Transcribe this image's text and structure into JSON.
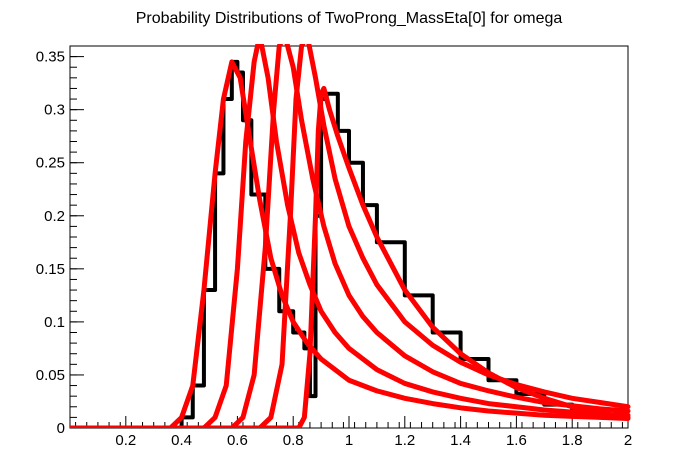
{
  "chart_data": {
    "type": "line",
    "title": "Probability Distributions of TwoProng_MassEta[0] for omega",
    "xlabel": "",
    "ylabel": "",
    "xlim": [
      0,
      2
    ],
    "ylim": [
      0,
      0.36
    ],
    "x_ticks": [
      0.2,
      0.4,
      0.6,
      0.8,
      1,
      1.2,
      1.4,
      1.6,
      1.8,
      2
    ],
    "x_tick_labels": [
      "0.2",
      "0.4",
      "0.6",
      "0.8",
      "1",
      "1.2",
      "1.4",
      "1.6",
      "1.8",
      "2"
    ],
    "y_ticks": [
      0,
      0.05,
      0.1,
      0.15,
      0.2,
      0.25,
      0.3,
      0.35
    ],
    "y_tick_labels": [
      "0",
      "0.05",
      "0.1",
      "0.15",
      "0.2",
      "0.25",
      "0.3",
      "0.35"
    ],
    "grid": false,
    "legend": "none",
    "colors": {
      "histogram": "#000000",
      "curves": "#ff0000"
    },
    "series": [
      {
        "style": "step",
        "color": "#000000",
        "x": [
          0.36,
          0.4,
          0.44,
          0.48,
          0.52,
          0.55,
          0.58,
          0.6,
          0.62,
          0.65,
          0.7,
          0.75,
          0.8,
          0.84,
          0.86,
          0.88,
          0.9,
          0.92,
          0.96,
          1.0,
          1.05,
          1.1,
          1.2,
          1.3,
          1.4,
          1.5,
          1.6,
          1.7,
          1.8,
          1.9,
          2.0
        ],
        "y": [
          0.0,
          0.01,
          0.04,
          0.13,
          0.24,
          0.31,
          0.345,
          0.335,
          0.29,
          0.22,
          0.15,
          0.11,
          0.09,
          0.075,
          0.03,
          0.2,
          0.31,
          0.315,
          0.28,
          0.25,
          0.21,
          0.175,
          0.125,
          0.09,
          0.065,
          0.045,
          0.032,
          0.022,
          0.016,
          0.012,
          0.01
        ]
      },
      {
        "style": "curve",
        "color": "#ff0000",
        "x": [
          0.36,
          0.4,
          0.44,
          0.48,
          0.52,
          0.55,
          0.58,
          0.61,
          0.64,
          0.68,
          0.72,
          0.76,
          0.8,
          0.85,
          0.9,
          1.0,
          1.1,
          1.2,
          1.3,
          1.4,
          1.5,
          1.6,
          1.7,
          1.8,
          1.9,
          2.0
        ],
        "y": [
          0.0,
          0.01,
          0.04,
          0.13,
          0.24,
          0.31,
          0.345,
          0.33,
          0.28,
          0.215,
          0.16,
          0.125,
          0.1,
          0.08,
          0.065,
          0.045,
          0.035,
          0.028,
          0.023,
          0.019,
          0.016,
          0.014,
          0.012,
          0.011,
          0.01,
          0.009
        ]
      },
      {
        "style": "curve",
        "color": "#ff0000",
        "x": [
          0.48,
          0.52,
          0.56,
          0.6,
          0.63,
          0.66,
          0.68,
          0.71,
          0.74,
          0.78,
          0.82,
          0.86,
          0.9,
          0.95,
          1.0,
          1.1,
          1.2,
          1.3,
          1.4,
          1.5,
          1.6,
          1.7,
          1.8,
          1.9,
          2.0
        ],
        "y": [
          0.0,
          0.01,
          0.04,
          0.15,
          0.27,
          0.345,
          0.37,
          0.33,
          0.27,
          0.21,
          0.165,
          0.135,
          0.11,
          0.09,
          0.075,
          0.055,
          0.042,
          0.034,
          0.028,
          0.023,
          0.02,
          0.017,
          0.015,
          0.013,
          0.012
        ]
      },
      {
        "style": "curve",
        "color": "#ff0000",
        "x": [
          0.58,
          0.62,
          0.66,
          0.7,
          0.73,
          0.75,
          0.77,
          0.8,
          0.83,
          0.87,
          0.91,
          0.95,
          1.0,
          1.05,
          1.1,
          1.2,
          1.3,
          1.4,
          1.5,
          1.6,
          1.7,
          1.8,
          1.9,
          2.0
        ],
        "y": [
          0.0,
          0.01,
          0.05,
          0.17,
          0.3,
          0.36,
          0.37,
          0.34,
          0.29,
          0.235,
          0.19,
          0.155,
          0.125,
          0.105,
          0.09,
          0.068,
          0.053,
          0.042,
          0.035,
          0.029,
          0.024,
          0.021,
          0.018,
          0.016
        ]
      },
      {
        "style": "curve",
        "color": "#ff0000",
        "x": [
          0.68,
          0.72,
          0.76,
          0.79,
          0.81,
          0.83,
          0.85,
          0.88,
          0.91,
          0.95,
          1.0,
          1.05,
          1.1,
          1.2,
          1.3,
          1.4,
          1.5,
          1.6,
          1.7,
          1.8,
          1.9,
          2.0
        ],
        "y": [
          0.0,
          0.01,
          0.06,
          0.2,
          0.31,
          0.36,
          0.37,
          0.33,
          0.285,
          0.235,
          0.19,
          0.16,
          0.135,
          0.1,
          0.078,
          0.062,
          0.05,
          0.041,
          0.034,
          0.028,
          0.024,
          0.02
        ]
      },
      {
        "style": "curve",
        "color": "#ff0000",
        "x": [
          0.82,
          0.84,
          0.86,
          0.88,
          0.89,
          0.9,
          0.91,
          0.93,
          0.96,
          1.0,
          1.05,
          1.1,
          1.2,
          1.3,
          1.4,
          1.5,
          1.6,
          1.7,
          1.8,
          1.9,
          2.0
        ],
        "y": [
          0.0,
          0.01,
          0.07,
          0.2,
          0.28,
          0.315,
          0.32,
          0.3,
          0.275,
          0.245,
          0.21,
          0.18,
          0.13,
          0.095,
          0.07,
          0.052,
          0.038,
          0.028,
          0.02,
          0.014,
          0.01
        ]
      }
    ]
  }
}
